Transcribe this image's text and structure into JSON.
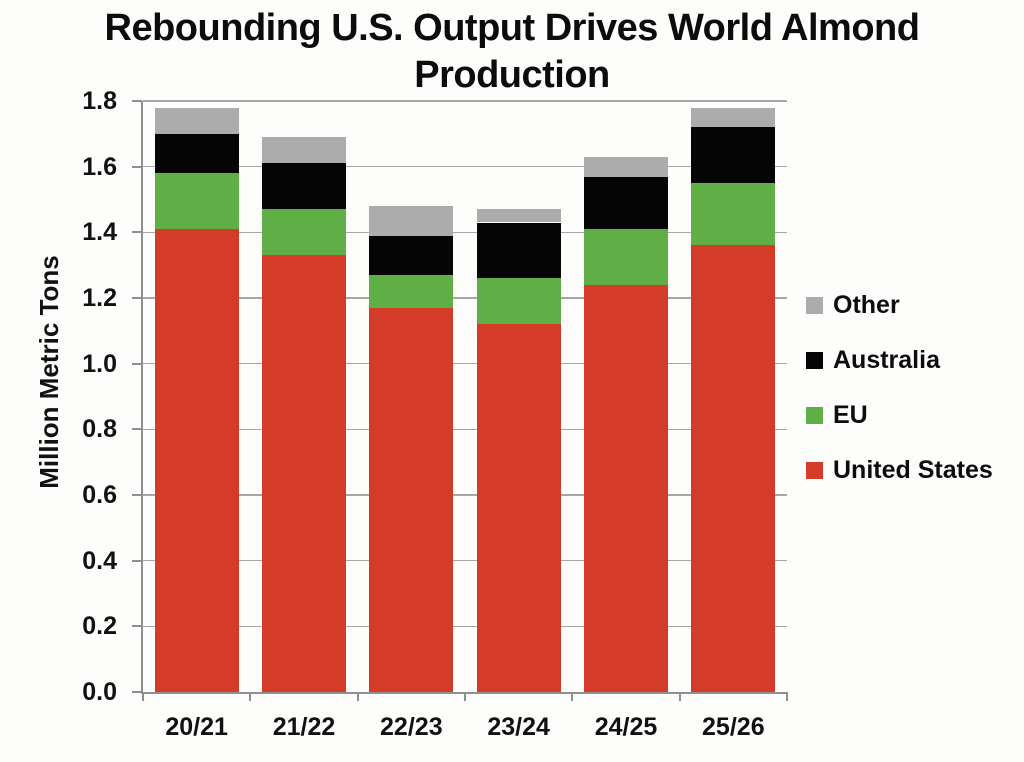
{
  "header": {
    "title_line1": "Rebounding U.S. Output Drives World Almond",
    "title_line2": "Production"
  },
  "chart_data": {
    "type": "bar",
    "stacked": true,
    "title": "Rebounding U.S. Output Drives World Almond Production",
    "ylabel": "Million Metric Tons",
    "xlabel": "",
    "ylim": [
      0.0,
      1.8
    ],
    "ytick_step": 0.2,
    "grid": true,
    "legend_position": "right",
    "categories": [
      "20/21",
      "21/22",
      "22/23",
      "23/24",
      "24/25",
      "25/26"
    ],
    "series": [
      {
        "name": "United States",
        "color": "#d43b28",
        "values": [
          1.41,
          1.33,
          1.17,
          1.12,
          1.24,
          1.36
        ]
      },
      {
        "name": "EU",
        "color": "#5fae46",
        "values": [
          0.17,
          0.14,
          0.1,
          0.14,
          0.17,
          0.19
        ]
      },
      {
        "name": "Australia",
        "color": "#050505",
        "values": [
          0.12,
          0.14,
          0.12,
          0.17,
          0.16,
          0.17
        ]
      },
      {
        "name": "Other",
        "color": "#acacac",
        "values": [
          0.08,
          0.08,
          0.09,
          0.04,
          0.06,
          0.06
        ]
      }
    ],
    "totals": [
      1.78,
      1.69,
      1.48,
      1.47,
      1.63,
      1.78
    ],
    "legend_order": [
      "Other",
      "Australia",
      "EU",
      "United States"
    ],
    "colors": {
      "gridline": "#a6a6a6",
      "axis": "#8f8f8f",
      "background": "#fdfdfc"
    }
  }
}
